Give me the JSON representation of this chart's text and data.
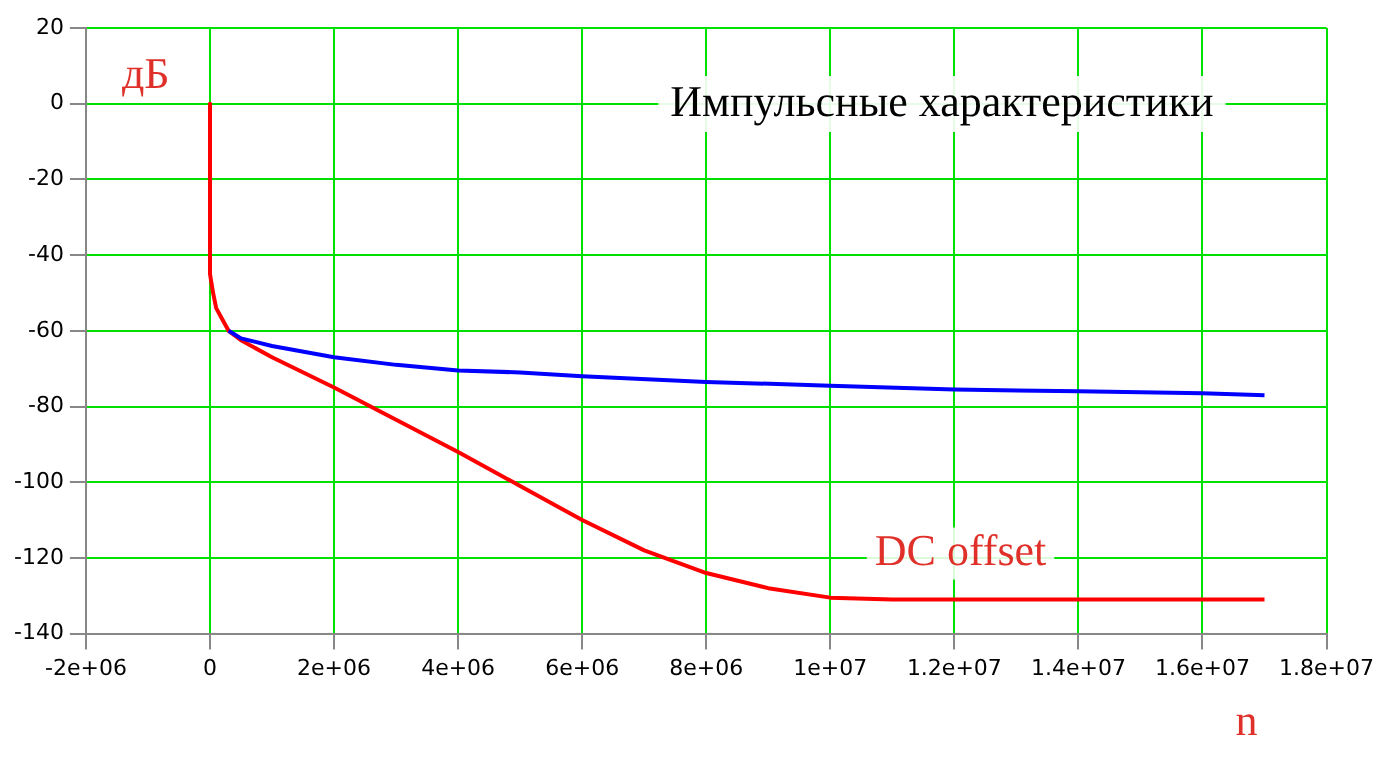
{
  "chart_data": {
    "type": "line",
    "title": "Импульсные характеристики",
    "xlabel": "n",
    "ylabel": "дБ",
    "annotations": [
      "DC offset"
    ],
    "series": [
      {
        "color": "#0000ff",
        "x": [
          300000,
          500000,
          1000000,
          2000000,
          3000000,
          4000000,
          5000000,
          6000000,
          8000000,
          10000000,
          12000000,
          14000000,
          16000000,
          17000000
        ],
        "values": [
          -60,
          -62,
          -64,
          -67,
          -69,
          -70.5,
          -71,
          -72,
          -73.5,
          -74.5,
          -75.5,
          -76,
          -76.5,
          -77
        ]
      },
      {
        "color": "#ff0000",
        "x": [
          0,
          0,
          50000,
          100000,
          200000,
          300000,
          500000,
          1000000,
          2000000,
          3000000,
          4000000,
          5000000,
          6000000,
          7000000,
          8000000,
          9000000,
          10000000,
          11000000,
          17000000
        ],
        "values": [
          0,
          -45,
          -50,
          -54,
          -57,
          -60,
          -62.5,
          -67,
          -75,
          -83.5,
          -92,
          -101,
          -110,
          -118,
          -124,
          -128,
          -130.5,
          -131,
          -131
        ]
      }
    ],
    "xlim": [
      -2000000,
      18000000
    ],
    "xticks": [
      {
        "value": -2000000,
        "label": "-2e+06"
      },
      0,
      {
        "value": 2000000,
        "label": "2e+06"
      },
      {
        "value": 4000000,
        "label": "4e+06"
      },
      {
        "value": 6000000,
        "label": "6e+06"
      },
      {
        "value": 8000000,
        "label": "8e+06"
      },
      {
        "value": 10000000,
        "label": "1e+07"
      },
      {
        "value": 12000000,
        "label": "1.2e+07"
      },
      {
        "value": 14000000,
        "label": "1.4e+07"
      },
      {
        "value": 16000000,
        "label": "1.6e+07"
      },
      {
        "value": 18000000,
        "label": "1.8e+07"
      }
    ],
    "ylim": [
      -140,
      20
    ],
    "yticks": [
      -140,
      -120,
      -100,
      -80,
      -60,
      -40,
      -20,
      0,
      20
    ],
    "grid": true,
    "legend": false,
    "marker": "none",
    "line_style": "solid"
  }
}
